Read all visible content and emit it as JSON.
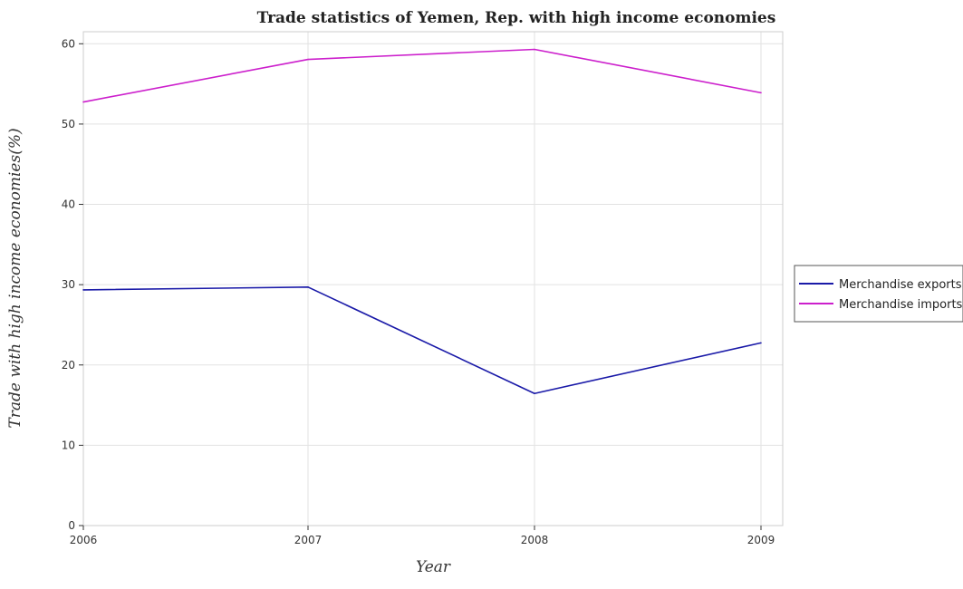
{
  "chart_data": {
    "type": "line",
    "title": "Trade statistics of Yemen, Rep. with high income economies",
    "xlabel": "Year",
    "ylabel": "Trade with high income economies(%)",
    "x": [
      "2006",
      "2007",
      "2008",
      "2009"
    ],
    "ylim": [
      0,
      61.5
    ],
    "yticks": [
      0,
      10,
      20,
      30,
      40,
      50,
      60
    ],
    "grid": true,
    "legend_position": "right",
    "series": [
      {
        "name": "Merchandise exports",
        "color": "#1a1aa8",
        "values": [
          29.35,
          29.7,
          16.45,
          22.75
        ]
      },
      {
        "name": "Merchandise imports",
        "color": "#cc1fcc",
        "values": [
          52.75,
          58.05,
          59.3,
          53.9
        ]
      }
    ]
  }
}
